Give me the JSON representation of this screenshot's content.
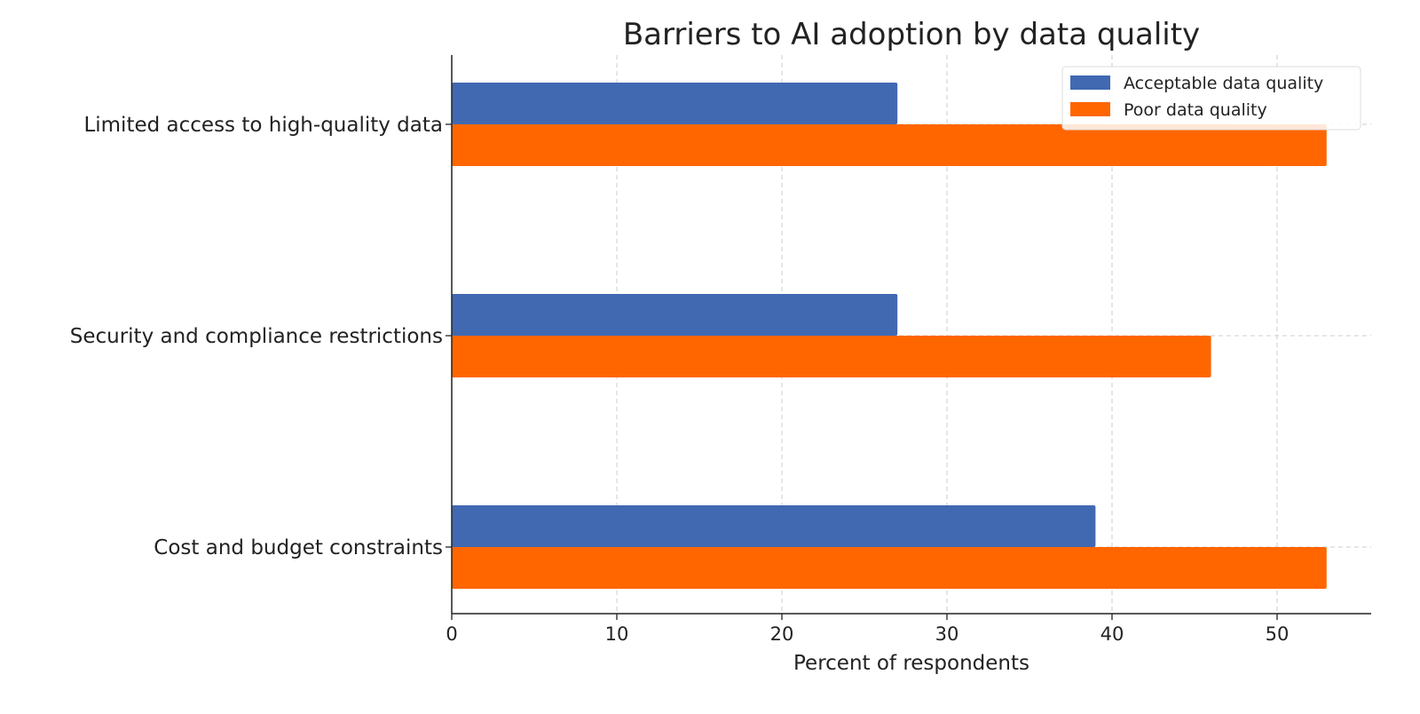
{
  "chart_data": {
    "type": "bar",
    "orientation": "horizontal",
    "title": "Barriers to AI adoption by data quality",
    "xlabel": "Percent of respondents",
    "ylabel": "",
    "categories": [
      "Limited access to high-quality data",
      "Security and compliance restrictions",
      "Cost and budget constraints"
    ],
    "series": [
      {
        "name": "Acceptable data quality",
        "values": [
          27,
          27,
          39
        ],
        "color": "#4169B2"
      },
      {
        "name": "Poor data quality",
        "values": [
          53,
          46,
          53
        ],
        "color": "#FF6600"
      }
    ],
    "xlim": [
      0,
      55.7
    ],
    "xticks": [
      0,
      10,
      20,
      30,
      40,
      50
    ],
    "grid": true,
    "legend_position": "top-right"
  }
}
